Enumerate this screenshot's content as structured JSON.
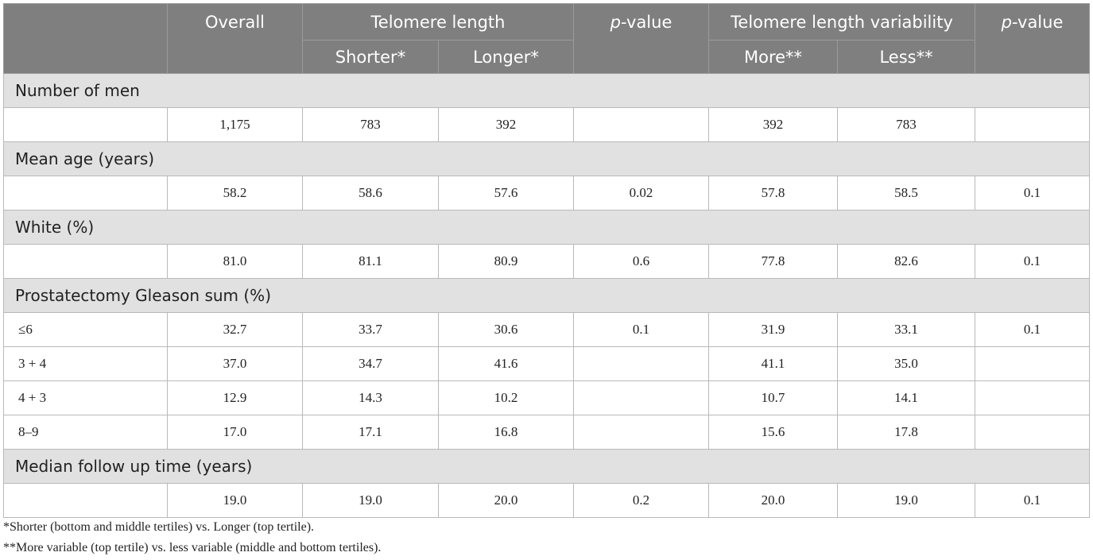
{
  "header": {
    "overall": "Overall",
    "tl_group": "Telomere length",
    "tl_shorter": "Shorter*",
    "tl_longer": "Longer*",
    "p1": "p-value",
    "tlv_group": "Telomere length variability",
    "tlv_more": "More**",
    "tlv_less": "Less**",
    "p2": "p-value"
  },
  "rows": {
    "men": {
      "label": "Number of men",
      "values": [
        "1,175",
        "783",
        "392",
        "",
        "392",
        "783",
        ""
      ]
    },
    "age": {
      "label": "Mean age (years)",
      "values": [
        "58.2",
        "58.6",
        "57.6",
        "0.02",
        "57.8",
        "58.5",
        "0.1"
      ]
    },
    "white": {
      "label": "White (%)",
      "values": [
        "81.0",
        "81.1",
        "80.9",
        "0.6",
        "77.8",
        "82.6",
        "0.1"
      ]
    },
    "gleason": {
      "label": "Prostatectomy Gleason sum (%)",
      "subrows": [
        {
          "label": "≤6",
          "values": [
            "32.7",
            "33.7",
            "30.6",
            "0.1",
            "31.9",
            "33.1",
            "0.1"
          ]
        },
        {
          "label": "3 + 4",
          "values": [
            "37.0",
            "34.7",
            "41.6",
            "",
            "41.1",
            "35.0",
            ""
          ]
        },
        {
          "label": "4 + 3",
          "values": [
            "12.9",
            "14.3",
            "10.2",
            "",
            "10.7",
            "14.1",
            ""
          ]
        },
        {
          "label": "8–9",
          "values": [
            "17.0",
            "17.1",
            "16.8",
            "",
            "15.6",
            "17.8",
            ""
          ]
        }
      ]
    },
    "followup": {
      "label": "Median follow up time (years)",
      "values": [
        "19.0",
        "19.0",
        "20.0",
        "0.2",
        "20.0",
        "19.0",
        "0.1"
      ]
    }
  },
  "footnotes": {
    "n1": "*Shorter (bottom and middle tertiles) vs. Longer (top tertile).",
    "n2": "**More variable (top tertile) vs. less variable (middle and bottom tertiles)."
  }
}
